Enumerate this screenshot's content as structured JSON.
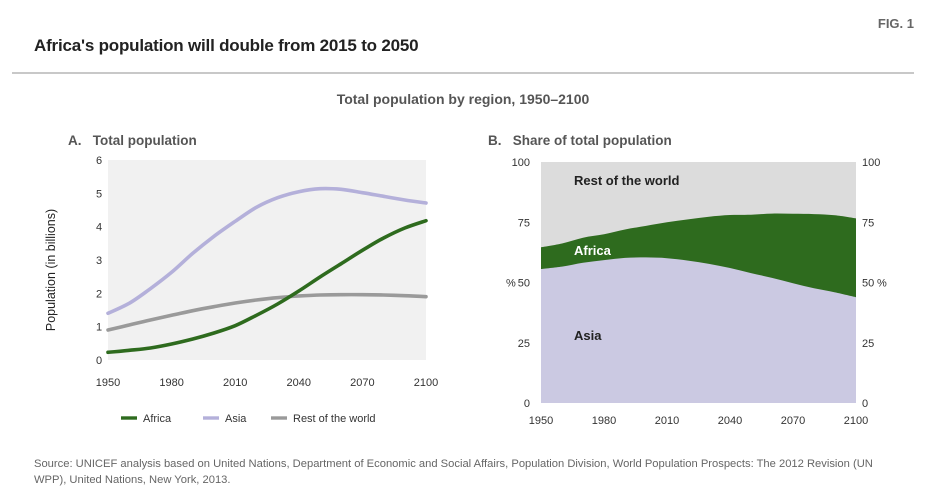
{
  "fig_label": "FIG. 1",
  "title": "Africa's population will double from 2015 to 2050",
  "subtitle": "Total population by region, 1950–2100",
  "source": "Source: UNICEF analysis based on United Nations, Department of Economic and Social Affairs, Population Division, World Population Prospects: The 2012 Revision (UN WPP), United Nations, New York, 2013.",
  "colors": {
    "africa": "#2e6b1e",
    "asia": "#b4b0da",
    "rest": "#9a9a9a",
    "area_rest": "#dcdcdc",
    "area_asia": "#cbc9e2",
    "area_africa": "#2e6b1e",
    "plot_bg": "#f1f1f1"
  },
  "chart_data": [
    {
      "panel": "A.",
      "type": "line",
      "title": "Total population",
      "ylabel": "Population (in billions)",
      "xlabel": "",
      "xlim": [
        1950,
        2100
      ],
      "ylim": [
        0,
        6
      ],
      "xticks": [
        "1950",
        "1980",
        "2010",
        "2040",
        "2070",
        "2100"
      ],
      "yticks": [
        "0",
        "1",
        "2",
        "3",
        "4",
        "5",
        "6"
      ],
      "x": [
        1950,
        1960,
        1970,
        1980,
        1990,
        2000,
        2010,
        2020,
        2030,
        2040,
        2050,
        2060,
        2070,
        2080,
        2090,
        2100
      ],
      "series": [
        {
          "name": "Africa",
          "values": [
            0.23,
            0.29,
            0.36,
            0.48,
            0.63,
            0.81,
            1.03,
            1.34,
            1.68,
            2.07,
            2.49,
            2.89,
            3.29,
            3.66,
            3.96,
            4.18
          ]
        },
        {
          "name": "Asia",
          "values": [
            1.4,
            1.7,
            2.14,
            2.63,
            3.2,
            3.71,
            4.16,
            4.58,
            4.87,
            5.05,
            5.14,
            5.12,
            5.02,
            4.91,
            4.8,
            4.71
          ]
        },
        {
          "name": "Rest of the world",
          "values": [
            0.9,
            1.05,
            1.2,
            1.34,
            1.48,
            1.6,
            1.71,
            1.8,
            1.87,
            1.92,
            1.95,
            1.96,
            1.96,
            1.95,
            1.93,
            1.9
          ]
        }
      ],
      "grid": false,
      "legend": "bottom"
    },
    {
      "panel": "B.",
      "type": "area",
      "title": "Share of total population",
      "ylabel_left": "%",
      "ylabel_right": "%",
      "xlim": [
        1950,
        2100
      ],
      "ylim": [
        0,
        100
      ],
      "xticks": [
        "1950",
        "1980",
        "2010",
        "2040",
        "2070",
        "2100"
      ],
      "yticks": [
        "0",
        "25",
        "50",
        "75",
        "100"
      ],
      "x": [
        1950,
        1960,
        1970,
        1980,
        1990,
        2000,
        2010,
        2020,
        2030,
        2040,
        2050,
        2060,
        2070,
        2080,
        2090,
        2100
      ],
      "series": [
        {
          "name": "Asia",
          "values": [
            55.6,
            56.6,
            58.2,
            59.3,
            60.2,
            60.4,
            60.1,
            59.1,
            57.7,
            56.0,
            53.9,
            51.9,
            49.7,
            47.6,
            45.9,
            43.9
          ]
        },
        {
          "name": "Africa",
          "values": [
            9.0,
            9.6,
            10.4,
            10.7,
            11.8,
            13.1,
            14.9,
            17.1,
            19.6,
            22.0,
            24.2,
            26.7,
            28.8,
            30.8,
            32.0,
            32.7
          ]
        },
        {
          "name": "Rest of the world",
          "values": [
            35.4,
            33.8,
            31.4,
            30.0,
            28.0,
            26.5,
            25.0,
            23.8,
            22.7,
            22.0,
            21.9,
            21.4,
            21.5,
            21.6,
            22.1,
            23.4
          ]
        }
      ],
      "area_labels": [
        "Rest of the world",
        "Africa",
        "Asia"
      ],
      "stacked": true,
      "grid": false
    }
  ]
}
